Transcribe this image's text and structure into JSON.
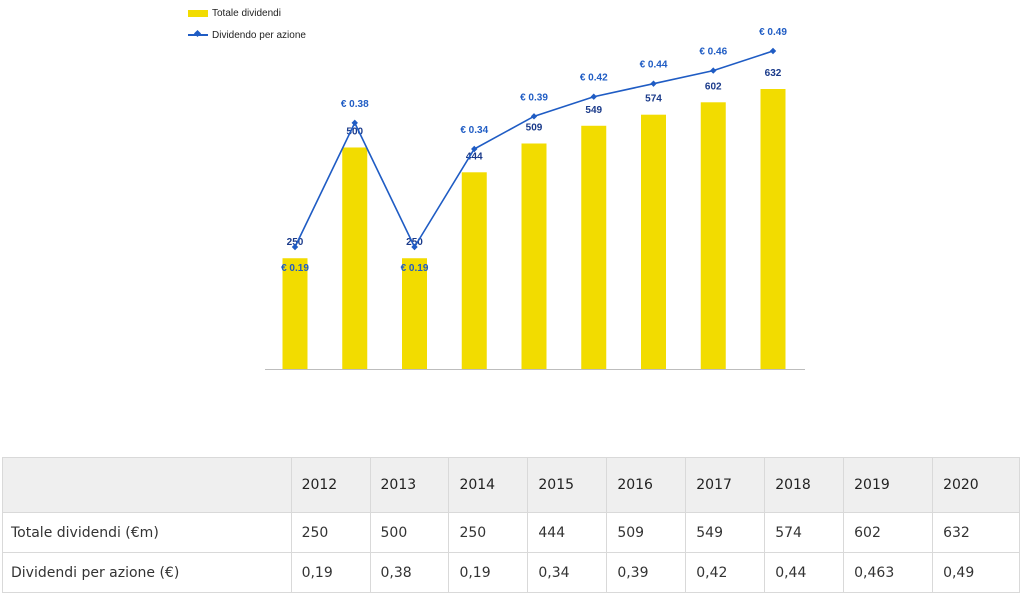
{
  "chart_data": {
    "type": "bar",
    "categories": [
      "2012",
      "2013",
      "2014",
      "2015",
      "2016",
      "2017",
      "2018",
      "2019",
      "2020"
    ],
    "series": [
      {
        "name": "Totale dividendi",
        "type": "bar",
        "color": "#f2dc00",
        "values": [
          250,
          500,
          250,
          444,
          509,
          549,
          574,
          602,
          632
        ],
        "labels": [
          "250",
          "500",
          "250",
          "444",
          "509",
          "549",
          "574",
          "602",
          "632"
        ]
      },
      {
        "name": "Dividendo per azione",
        "type": "line",
        "color": "#1f5cc4",
        "values": [
          0.19,
          0.38,
          0.19,
          0.34,
          0.39,
          0.42,
          0.44,
          0.46,
          0.49
        ],
        "labels": [
          "€ 0.19",
          "€ 0.38",
          "€ 0.19",
          "€ 0.34",
          "€ 0.39",
          "€ 0.42",
          "€ 0.44",
          "€ 0.46",
          "€ 0.49"
        ]
      }
    ],
    "bar_axis_range": [
      0,
      632
    ],
    "line_axis_range": [
      0.1,
      0.49
    ],
    "grid": false,
    "legend_position": "top-left"
  },
  "table": {
    "header": [
      "",
      "2012",
      "2013",
      "2014",
      "2015",
      "2016",
      "2017",
      "2018",
      "2019",
      "2020"
    ],
    "rows": [
      {
        "label": "Totale dividendi (€m)",
        "values": [
          "250",
          "500",
          "250",
          "444",
          "509",
          "549",
          "574",
          "602",
          "632"
        ]
      },
      {
        "label": "Dividendi per azione (€)",
        "values": [
          "0,19",
          "0,38",
          "0,19",
          "0,34",
          "0,39",
          "0,42",
          "0,44",
          "0,463",
          "0,49"
        ]
      }
    ]
  }
}
